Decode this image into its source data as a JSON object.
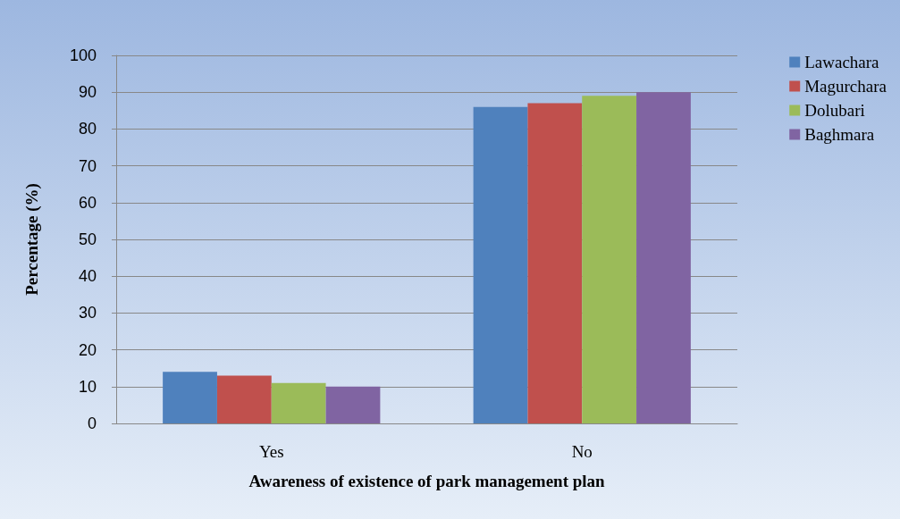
{
  "chart_data": {
    "type": "bar",
    "xlabel": "Awareness of existence of park management plan",
    "ylabel": "Percentage (%)",
    "categories": [
      "Yes",
      "No"
    ],
    "series": [
      {
        "name": "Lawachara",
        "color": "#4f81bd",
        "values": [
          14,
          86
        ]
      },
      {
        "name": "Magurchara",
        "color": "#c0504d",
        "values": [
          13,
          87
        ]
      },
      {
        "name": "Dolubari",
        "color": "#9bbb59",
        "values": [
          11,
          89
        ]
      },
      {
        "name": "Baghmara",
        "color": "#8064a2",
        "values": [
          10,
          90
        ]
      }
    ],
    "ylim": [
      0,
      100
    ],
    "yticks": [
      0,
      10,
      20,
      30,
      40,
      50,
      60,
      70,
      80,
      90,
      100
    ],
    "grid": "y",
    "legend": "top right"
  }
}
